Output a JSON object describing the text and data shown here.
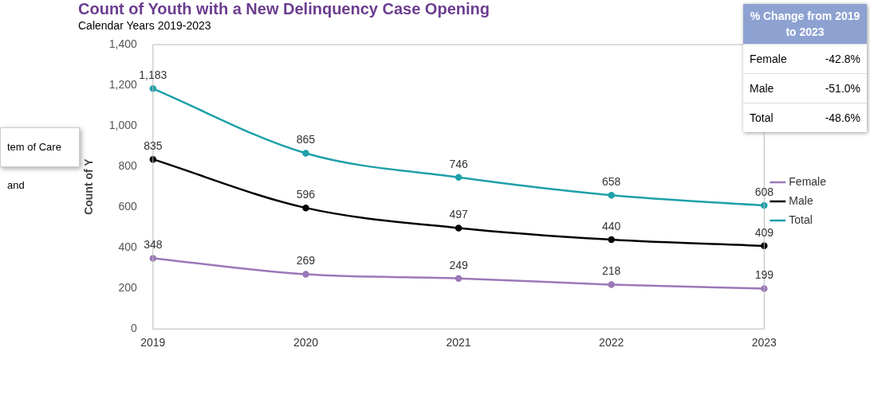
{
  "chart_data": [
    {
      "type": "line",
      "title": "Count of Youth with a New Delinquency Case Opening",
      "subtitle": "Calendar Years 2019-2023",
      "ylabel": "Count of Y",
      "annotations": [
        "tem of Care and"
      ],
      "categories": [
        "2019",
        "2020",
        "2021",
        "2022",
        "2023"
      ],
      "series": [
        {
          "name": "Female",
          "color": "#9b78b8",
          "values": [
            348,
            269,
            249,
            218,
            199
          ],
          "value_labels": [
            "348",
            "269",
            "249",
            "218",
            "199"
          ]
        },
        {
          "name": "Male",
          "color": "#000000",
          "values": [
            835,
            596,
            497,
            440,
            409
          ],
          "value_labels": [
            "835",
            "596",
            "497",
            "440",
            "409"
          ]
        },
        {
          "name": "Total",
          "color": "#1ea0a8",
          "values": [
            1183,
            865,
            746,
            658,
            608
          ],
          "value_labels": [
            "1,183",
            "865",
            "746",
            "658",
            "608"
          ]
        }
      ],
      "ylim": [
        0,
        1400
      ],
      "yticks": [
        0,
        200,
        400,
        600,
        800,
        {
          "value": 1000,
          "label": "1,000"
        },
        {
          "value": 1200,
          "label": "1,200"
        },
        {
          "value": 1400,
          "label": "1,400"
        }
      ],
      "grid": false,
      "legend": "right",
      "marker": "circle",
      "line_style": "solid"
    },
    {
      "type": "other",
      "title": "% Change from 2019 to 2023",
      "annotations": [
        "Female",
        "-42.8%",
        "Male",
        "-51.0%",
        "Total",
        "-48.6%"
      ]
    }
  ]
}
